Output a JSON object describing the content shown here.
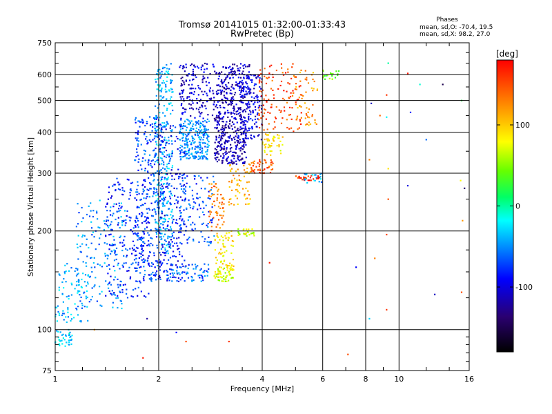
{
  "chart_data": {
    "type": "scatter",
    "title": "Tromsø 20141015 01:32:00-01:33:43",
    "subtitle": "RwPretec (Bp)",
    "xlabel": "Frequency [MHz]",
    "ylabel": "Stationary phase Virtual Height [km]",
    "x_scale": "log",
    "y_scale": "log",
    "xlim": [
      1,
      16
    ],
    "ylim": [
      75,
      750
    ],
    "x_ticks": [
      1,
      2,
      4,
      6,
      8,
      10,
      16
    ],
    "x_tick_labels": [
      "1",
      "2",
      "4",
      "6",
      "8",
      "10",
      "16"
    ],
    "y_ticks": [
      75,
      100,
      200,
      300,
      400,
      500,
      600,
      750
    ],
    "y_tick_labels": [
      "75",
      "100",
      "200",
      "300",
      "400",
      "500",
      "600",
      "750"
    ],
    "grid": true,
    "annotation": {
      "title": "Phases",
      "line_o": "mean, sd,O: -70.4, 19.5",
      "line_x": "mean, sd,X:  98.2, 27.0"
    },
    "colorbar": {
      "label": "[deg]",
      "range": [
        -180,
        180
      ],
      "ticks": [
        100,
        0,
        -100
      ],
      "tick_labels": [
        "100",
        "0",
        "-100"
      ]
    },
    "clusters": [
      {
        "f": [
          1.0,
          1.12
        ],
        "h": [
          88,
          100
        ],
        "phase": -30,
        "n": 40
      },
      {
        "f": [
          1.0,
          1.25
        ],
        "h": [
          105,
          160
        ],
        "phase": -40,
        "n": 90
      },
      {
        "f": [
          1.15,
          1.6
        ],
        "h": [
          115,
          250
        ],
        "phase": -50,
        "n": 160
      },
      {
        "f": [
          1.4,
          1.9
        ],
        "h": [
          125,
          290
        ],
        "phase": -80,
        "n": 220
      },
      {
        "f": [
          1.7,
          2.05
        ],
        "h": [
          140,
          450
        ],
        "phase": -70,
        "n": 320
      },
      {
        "f": [
          1.95,
          2.2
        ],
        "h": [
          170,
          650
        ],
        "phase": -40,
        "n": 300
      },
      {
        "f": [
          2.0,
          2.4
        ],
        "h": [
          140,
          420
        ],
        "phase": -90,
        "n": 180
      },
      {
        "f": [
          2.3,
          2.8
        ],
        "h": [
          330,
          440
        ],
        "phase": -50,
        "n": 240
      },
      {
        "f": [
          2.3,
          2.9
        ],
        "h": [
          180,
          300
        ],
        "phase": -70,
        "n": 120
      },
      {
        "f": [
          2.1,
          2.8
        ],
        "h": [
          140,
          160
        ],
        "phase": -60,
        "n": 70
      },
      {
        "f": [
          2.3,
          3.0
        ],
        "h": [
          440,
          650
        ],
        "phase": -105,
        "n": 180
      },
      {
        "f": [
          2.9,
          3.6
        ],
        "h": [
          320,
          450
        ],
        "phase": -115,
        "n": 280
      },
      {
        "f": [
          3.0,
          3.7
        ],
        "h": [
          450,
          650
        ],
        "phase": -110,
        "n": 200
      },
      {
        "f": [
          3.4,
          4.0
        ],
        "h": [
          380,
          600
        ],
        "phase": -100,
        "n": 150
      },
      {
        "f": [
          2.9,
          3.3
        ],
        "h": [
          140,
          155
        ],
        "phase": 70,
        "n": 60
      },
      {
        "f": [
          2.9,
          3.3
        ],
        "h": [
          155,
          200
        ],
        "phase": 90,
        "n": 60
      },
      {
        "f": [
          2.8,
          3.1
        ],
        "h": [
          200,
          280
        ],
        "phase": 130,
        "n": 60
      },
      {
        "f": [
          3.2,
          3.7
        ],
        "h": [
          240,
          320
        ],
        "phase": 110,
        "n": 60
      },
      {
        "f": [
          3.4,
          3.8
        ],
        "h": [
          193,
          203
        ],
        "phase": 70,
        "n": 25
      },
      {
        "f": [
          3.7,
          4.3
        ],
        "h": [
          300,
          330
        ],
        "phase": 150,
        "n": 50
      },
      {
        "f": [
          4.0,
          4.6
        ],
        "h": [
          340,
          400
        ],
        "phase": 90,
        "n": 50
      },
      {
        "f": [
          3.9,
          5.2
        ],
        "h": [
          400,
          650
        ],
        "phase": 150,
        "n": 130
      },
      {
        "f": [
          5.0,
          5.8
        ],
        "h": [
          420,
          620
        ],
        "phase": 120,
        "n": 50
      },
      {
        "f": [
          5.0,
          5.9
        ],
        "h": [
          285,
          295
        ],
        "phase": 160,
        "n": 30
      },
      {
        "f": [
          5.3,
          6.0
        ],
        "h": [
          280,
          300
        ],
        "phase": -40,
        "n": 20
      },
      {
        "f": [
          6.0,
          6.7
        ],
        "h": [
          580,
          620
        ],
        "phase": 40,
        "n": 20
      }
    ],
    "scattered_points": [
      {
        "f": 9.3,
        "h": 650,
        "phase": 0
      },
      {
        "f": 10.6,
        "h": 605,
        "phase": 170
      },
      {
        "f": 11.5,
        "h": 560,
        "phase": -10
      },
      {
        "f": 13.4,
        "h": 560,
        "phase": -150
      },
      {
        "f": 9.2,
        "h": 520,
        "phase": 160
      },
      {
        "f": 8.3,
        "h": 490,
        "phase": -110
      },
      {
        "f": 10.8,
        "h": 460,
        "phase": -80
      },
      {
        "f": 15.2,
        "h": 500,
        "phase": 20
      },
      {
        "f": 8.8,
        "h": 450,
        "phase": 140
      },
      {
        "f": 9.2,
        "h": 445,
        "phase": -20
      },
      {
        "f": 12.0,
        "h": 380,
        "phase": -60
      },
      {
        "f": 8.2,
        "h": 330,
        "phase": 130
      },
      {
        "f": 9.3,
        "h": 310,
        "phase": 90
      },
      {
        "f": 10.6,
        "h": 275,
        "phase": -100
      },
      {
        "f": 15.1,
        "h": 285,
        "phase": 80
      },
      {
        "f": 15.5,
        "h": 270,
        "phase": -140
      },
      {
        "f": 9.3,
        "h": 250,
        "phase": 150
      },
      {
        "f": 15.3,
        "h": 215,
        "phase": 120
      },
      {
        "f": 9.2,
        "h": 195,
        "phase": 155
      },
      {
        "f": 7.5,
        "h": 155,
        "phase": -90
      },
      {
        "f": 8.5,
        "h": 165,
        "phase": 130
      },
      {
        "f": 12.7,
        "h": 128,
        "phase": -110
      },
      {
        "f": 15.2,
        "h": 130,
        "phase": 150
      },
      {
        "f": 9.2,
        "h": 115,
        "phase": 160
      },
      {
        "f": 8.2,
        "h": 108,
        "phase": -30
      },
      {
        "f": 7.1,
        "h": 84,
        "phase": 150
      },
      {
        "f": 4.2,
        "h": 160,
        "phase": 170
      },
      {
        "f": 2.4,
        "h": 92,
        "phase": 150
      },
      {
        "f": 3.2,
        "h": 92,
        "phase": 160
      },
      {
        "f": 1.8,
        "h": 82,
        "phase": 170
      },
      {
        "f": 1.3,
        "h": 100,
        "phase": 120
      },
      {
        "f": 1.85,
        "h": 108,
        "phase": -120
      },
      {
        "f": 2.25,
        "h": 98,
        "phase": -90
      }
    ]
  }
}
